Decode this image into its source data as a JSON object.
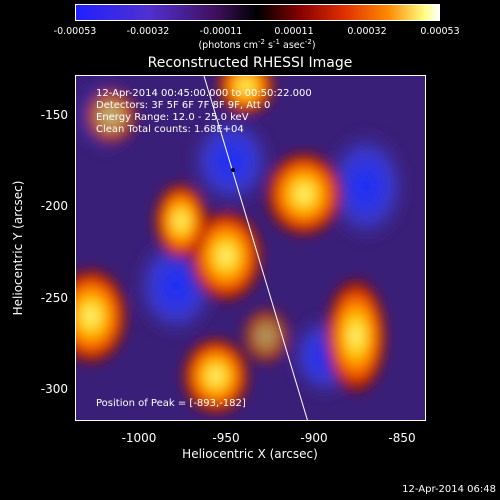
{
  "colorbar": {
    "ticks": [
      "-0.00053",
      "-0.00032",
      "-0.00011",
      "0.00011",
      "0.00032",
      "0.00053"
    ],
    "unit_prefix": "(photons cm",
    "unit_exp1": "-2",
    "unit_mid1": " s",
    "unit_exp2": "-1",
    "unit_mid2": " asec",
    "unit_exp3": "-2",
    "unit_suffix": ")"
  },
  "title": "Reconstructed RHESSI Image",
  "annotations": {
    "time": "12-Apr-2014 00:45:00.000 to 00:50:22.000",
    "detectors": "Detectors: 3F 5F 6F 7F 8F 9F, Att 0",
    "energy": "Energy Range: 12.0 - 25.0 keV",
    "clean": "Clean     Total counts: 1.68E+04",
    "peak": "Position of Peak = [-893,-182]"
  },
  "axes": {
    "xlabel": "Heliocentric X (arcsec)",
    "ylabel": "Heliocentric Y (arcsec)",
    "xticks": [
      "-1000",
      "-950",
      "-900",
      "-850"
    ],
    "yticks": [
      "-150",
      "-200",
      "-250",
      "-300"
    ]
  },
  "timestamp": "12-Apr-2014 06:48"
}
